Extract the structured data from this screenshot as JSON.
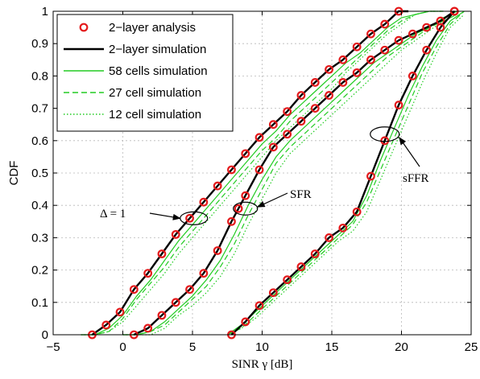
{
  "chart_data": {
    "type": "line",
    "xlabel": "SINR γ [dB]",
    "ylabel": "CDF",
    "xlim": [
      -5,
      25
    ],
    "ylim": [
      0,
      1
    ],
    "xticks": [
      "−5",
      "0",
      "5",
      "10",
      "15",
      "20",
      "25"
    ],
    "yticks": [
      "0",
      "0.1",
      "0.2",
      "0.3",
      "0.4",
      "0.5",
      "0.6",
      "0.7",
      "0.8",
      "0.9",
      "1"
    ],
    "grid": true,
    "legend_position": "top-left",
    "colors": {
      "analysis": "#e41a1c",
      "simulation": "#000000",
      "cells": "#22cc22"
    },
    "legend": [
      {
        "label": "2−layer analysis",
        "style": "marker"
      },
      {
        "label": "2−layer simulation",
        "style": "black-solid"
      },
      {
        "label": "58 cells simulation",
        "style": "green-solid"
      },
      {
        "label": "27 cell simulation",
        "style": "green-dashed"
      },
      {
        "label": "12 cell simulation",
        "style": "green-dotted"
      }
    ],
    "annotations": [
      {
        "text": "Δ = 1",
        "target": "reuse-1"
      },
      {
        "text": "SFR",
        "target": "SFR"
      },
      {
        "text": "sFFR",
        "target": "sFFR"
      }
    ],
    "groups": [
      {
        "scheme": "reuse-1",
        "analysis": {
          "x": [
            -2.2,
            -1.2,
            -0.2,
            0.8,
            1.8,
            2.8,
            3.8,
            4.8,
            5.8,
            6.8,
            7.8,
            8.8,
            9.8,
            10.8,
            11.8,
            12.8,
            13.8,
            14.8,
            15.8,
            16.8,
            17.8,
            18.8,
            19.8
          ],
          "y": [
            0.0,
            0.03,
            0.07,
            0.14,
            0.19,
            0.25,
            0.31,
            0.36,
            0.41,
            0.46,
            0.51,
            0.56,
            0.61,
            0.65,
            0.69,
            0.74,
            0.78,
            0.82,
            0.85,
            0.89,
            0.93,
            0.96,
            1.0
          ]
        },
        "simulation": {
          "x": [
            -2.2,
            -1.2,
            -0.2,
            0.8,
            1.8,
            2.8,
            3.8,
            4.8,
            5.8,
            6.8,
            7.8,
            8.8,
            9.8,
            10.8,
            11.8,
            12.8,
            13.8,
            14.8,
            15.8,
            16.8,
            17.8,
            18.8,
            19.8,
            20.5
          ],
          "y": [
            0.0,
            0.03,
            0.07,
            0.14,
            0.19,
            0.25,
            0.31,
            0.36,
            0.41,
            0.46,
            0.51,
            0.56,
            0.61,
            0.65,
            0.69,
            0.74,
            0.78,
            0.82,
            0.85,
            0.89,
            0.93,
            0.96,
            1.0,
            1.0
          ]
        },
        "cells58": {
          "x": [
            -3,
            -2,
            -1,
            0,
            1,
            2,
            3,
            4,
            5,
            6,
            7,
            8,
            9,
            10,
            11,
            12,
            13,
            14,
            15,
            16,
            17,
            18,
            19,
            20,
            21,
            22,
            23
          ],
          "y": [
            0.0,
            0.0,
            0.02,
            0.06,
            0.12,
            0.17,
            0.23,
            0.29,
            0.34,
            0.39,
            0.44,
            0.49,
            0.54,
            0.59,
            0.63,
            0.68,
            0.72,
            0.76,
            0.8,
            0.84,
            0.87,
            0.91,
            0.95,
            0.98,
            0.99,
            1.0,
            1.0
          ]
        },
        "cells27": {
          "x": [
            -3,
            -2,
            -1,
            0,
            1,
            2,
            3,
            4,
            5,
            6,
            7,
            8,
            9,
            10,
            11,
            12,
            13,
            14,
            15,
            16,
            17,
            18,
            19,
            20,
            21,
            22,
            23
          ],
          "y": [
            0.0,
            0.0,
            0.01,
            0.05,
            0.11,
            0.16,
            0.21,
            0.27,
            0.32,
            0.37,
            0.42,
            0.47,
            0.52,
            0.57,
            0.61,
            0.66,
            0.7,
            0.74,
            0.78,
            0.82,
            0.86,
            0.9,
            0.94,
            0.97,
            0.99,
            1.0,
            1.0
          ]
        },
        "cells12": {
          "x": [
            -3,
            -2,
            -1,
            0,
            1,
            2,
            3,
            4,
            5,
            6,
            7,
            8,
            9,
            10,
            11,
            12,
            13,
            14,
            15,
            16,
            17,
            18,
            19,
            20,
            21,
            22,
            23
          ],
          "y": [
            0.0,
            0.0,
            0.01,
            0.04,
            0.09,
            0.14,
            0.19,
            0.25,
            0.3,
            0.35,
            0.4,
            0.45,
            0.5,
            0.55,
            0.6,
            0.64,
            0.68,
            0.72,
            0.76,
            0.81,
            0.85,
            0.89,
            0.93,
            0.96,
            0.99,
            1.0,
            1.0
          ]
        }
      },
      {
        "scheme": "SFR",
        "analysis": {
          "x": [
            0.8,
            1.8,
            2.8,
            3.8,
            4.8,
            5.8,
            6.8,
            7.8,
            8.3,
            8.8,
            9.8,
            10.8,
            11.8,
            12.8,
            13.8,
            14.8,
            15.8,
            16.8,
            17.8,
            18.8,
            19.8,
            20.8,
            21.8,
            22.8,
            23.8
          ],
          "y": [
            0.0,
            0.02,
            0.06,
            0.1,
            0.14,
            0.19,
            0.26,
            0.35,
            0.39,
            0.43,
            0.51,
            0.58,
            0.62,
            0.66,
            0.7,
            0.74,
            0.78,
            0.81,
            0.85,
            0.88,
            0.91,
            0.93,
            0.95,
            0.97,
            1.0
          ]
        },
        "simulation": {
          "x": [
            0.8,
            1.8,
            2.8,
            3.8,
            4.8,
            5.8,
            6.8,
            7.8,
            8.3,
            8.8,
            9.8,
            10.8,
            11.8,
            12.8,
            13.8,
            14.8,
            15.8,
            16.8,
            17.8,
            18.8,
            19.8,
            20.8,
            21.8,
            22.8,
            23.8
          ],
          "y": [
            0.0,
            0.02,
            0.06,
            0.1,
            0.14,
            0.19,
            0.26,
            0.35,
            0.39,
            0.43,
            0.51,
            0.58,
            0.62,
            0.66,
            0.7,
            0.74,
            0.78,
            0.81,
            0.85,
            0.88,
            0.91,
            0.93,
            0.95,
            0.97,
            1.0
          ]
        },
        "cells58": {
          "x": [
            0,
            1,
            2,
            3,
            4,
            5,
            6,
            7,
            8,
            9,
            10,
            11,
            12,
            13,
            14,
            15,
            16,
            17,
            18,
            19,
            20,
            21,
            22,
            23,
            24
          ],
          "y": [
            0.0,
            0.0,
            0.01,
            0.04,
            0.08,
            0.12,
            0.17,
            0.23,
            0.31,
            0.4,
            0.48,
            0.55,
            0.6,
            0.64,
            0.68,
            0.72,
            0.76,
            0.8,
            0.84,
            0.87,
            0.9,
            0.93,
            0.95,
            0.98,
            1.0
          ]
        },
        "cells27": {
          "x": [
            0,
            1,
            2,
            3,
            4,
            5,
            6,
            7,
            8,
            9,
            10,
            11,
            12,
            13,
            14,
            15,
            16,
            17,
            18,
            19,
            20,
            21,
            22,
            23,
            24
          ],
          "y": [
            0.0,
            0.0,
            0.01,
            0.03,
            0.07,
            0.11,
            0.15,
            0.21,
            0.28,
            0.37,
            0.45,
            0.53,
            0.58,
            0.62,
            0.66,
            0.7,
            0.74,
            0.78,
            0.82,
            0.86,
            0.89,
            0.92,
            0.95,
            0.97,
            0.99
          ]
        },
        "cells12": {
          "x": [
            0,
            1,
            2,
            3,
            4,
            5,
            6,
            7,
            8,
            9,
            10,
            11,
            12,
            13,
            14,
            15,
            16,
            17,
            18,
            19,
            20,
            21,
            22,
            23,
            24
          ],
          "y": [
            0.0,
            0.0,
            0.0,
            0.02,
            0.06,
            0.09,
            0.13,
            0.18,
            0.25,
            0.34,
            0.42,
            0.5,
            0.56,
            0.6,
            0.64,
            0.68,
            0.72,
            0.76,
            0.8,
            0.84,
            0.88,
            0.91,
            0.94,
            0.97,
            0.99
          ]
        }
      },
      {
        "scheme": "sFFR",
        "analysis": {
          "x": [
            7.8,
            8.8,
            9.8,
            10.8,
            11.8,
            12.8,
            13.8,
            14.8,
            15.8,
            16.8,
            17.8,
            18.8,
            19.8,
            20.8,
            21.8,
            22.8,
            23.8
          ],
          "y": [
            0.0,
            0.04,
            0.09,
            0.13,
            0.17,
            0.21,
            0.25,
            0.3,
            0.33,
            0.38,
            0.49,
            0.6,
            0.71,
            0.8,
            0.88,
            0.95,
            1.0
          ]
        },
        "simulation": {
          "x": [
            7.8,
            8.8,
            9.8,
            10.8,
            11.8,
            12.8,
            13.8,
            14.8,
            15.8,
            16.8,
            17.8,
            18.8,
            19.8,
            20.8,
            21.8,
            22.8,
            23.8
          ],
          "y": [
            0.0,
            0.04,
            0.09,
            0.13,
            0.17,
            0.21,
            0.25,
            0.3,
            0.33,
            0.38,
            0.49,
            0.6,
            0.71,
            0.8,
            0.88,
            0.95,
            1.0
          ]
        },
        "cells58": {
          "x": [
            7.5,
            8.5,
            9.5,
            10.5,
            11.5,
            12.5,
            13.5,
            14.5,
            15.5,
            16.5,
            17.5,
            18.5,
            19.5,
            20.5,
            21.5,
            22.5,
            23.5,
            24.5
          ],
          "y": [
            0.0,
            0.03,
            0.07,
            0.11,
            0.15,
            0.19,
            0.23,
            0.27,
            0.31,
            0.35,
            0.43,
            0.54,
            0.64,
            0.74,
            0.83,
            0.91,
            0.97,
            1.0
          ]
        },
        "cells27": {
          "x": [
            7.5,
            8.5,
            9.5,
            10.5,
            11.5,
            12.5,
            13.5,
            14.5,
            15.5,
            16.5,
            17.5,
            18.5,
            19.5,
            20.5,
            21.5,
            22.5,
            23.5,
            24.5
          ],
          "y": [
            0.0,
            0.02,
            0.06,
            0.1,
            0.14,
            0.18,
            0.22,
            0.26,
            0.3,
            0.34,
            0.41,
            0.51,
            0.61,
            0.71,
            0.81,
            0.89,
            0.96,
            1.0
          ]
        },
        "cells12": {
          "x": [
            7.5,
            8.5,
            9.5,
            10.5,
            11.5,
            12.5,
            13.5,
            14.5,
            15.5,
            16.5,
            17.5,
            18.5,
            19.5,
            20.5,
            21.5,
            22.5,
            23.5,
            24.5
          ],
          "y": [
            0.0,
            0.02,
            0.05,
            0.09,
            0.13,
            0.17,
            0.21,
            0.25,
            0.29,
            0.32,
            0.38,
            0.48,
            0.58,
            0.68,
            0.78,
            0.87,
            0.95,
            0.99
          ]
        }
      }
    ]
  }
}
